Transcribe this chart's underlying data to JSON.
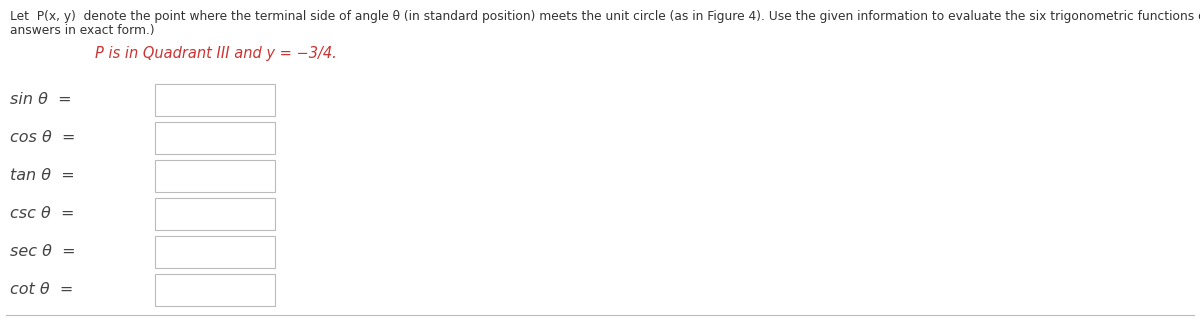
{
  "background_color": "#ffffff",
  "header_line1": "Let  P(x, y)  denote the point where the terminal side of angle θ (in standard position) meets the unit circle (as in Figure 4). Use the given information to evaluate the six trigonometric functions of θ. (Enter your",
  "header_line2": "answers in exact form.)",
  "condition_italic_color": "#cc3333",
  "condition_segments": [
    {
      "text": "P",
      "style": "italic",
      "weight": "normal"
    },
    {
      "text": " is in Quadrant ",
      "style": "italic",
      "weight": "normal"
    },
    {
      "text": "III",
      "style": "italic",
      "weight": "bold"
    },
    {
      "text": " and ",
      "style": "italic",
      "weight": "normal"
    },
    {
      "text": "y",
      "style": "italic",
      "weight": "normal"
    },
    {
      "text": " = ",
      "style": "normal",
      "weight": "normal"
    },
    {
      "text": "−3/4.",
      "style": "italic",
      "weight": "bold"
    }
  ],
  "functions": [
    "sin",
    "cos",
    "tan",
    "csc",
    "sec",
    "cot"
  ],
  "theta": "θ",
  "text_color": "#444444",
  "header_color": "#333333",
  "box_edge_color": "#bbbbbb",
  "box_face_color": "#ffffff",
  "bottom_line_color": "#bbbbbb",
  "header_fontsize": 8.8,
  "label_fontsize": 11.5,
  "condition_fontsize": 10.5,
  "fig_width": 12.0,
  "fig_height": 3.19,
  "dpi": 100
}
